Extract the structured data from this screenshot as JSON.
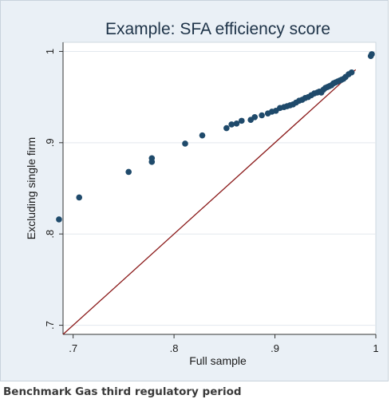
{
  "caption": "Benchmark Gas third regulatory period",
  "chart_data": {
    "type": "scatter",
    "title": "Example: SFA efficiency score",
    "xlabel": "Full sample",
    "ylabel": "Excluding single firm",
    "xlim": [
      0.69,
      1.0
    ],
    "ylim": [
      0.69,
      1.01
    ],
    "xticks": [
      0.7,
      0.8,
      0.9,
      1.0
    ],
    "xtick_labels": [
      ".7",
      ".8",
      ".9",
      "1"
    ],
    "yticks": [
      0.7,
      0.8,
      0.9,
      1.0
    ],
    "ytick_labels": [
      ".7",
      ".8",
      ".9",
      "1"
    ],
    "grid": true,
    "reference_line": {
      "from": [
        0.69,
        0.69
      ],
      "to": [
        0.98,
        0.98
      ],
      "color": "#8b1a1a"
    },
    "marker_color": "#1f4a6b",
    "points": [
      [
        0.686,
        0.816
      ],
      [
        0.706,
        0.84
      ],
      [
        0.755,
        0.868
      ],
      [
        0.778,
        0.883
      ],
      [
        0.778,
        0.879
      ],
      [
        0.811,
        0.899
      ],
      [
        0.828,
        0.908
      ],
      [
        0.852,
        0.916
      ],
      [
        0.857,
        0.92
      ],
      [
        0.862,
        0.921
      ],
      [
        0.867,
        0.924
      ],
      [
        0.876,
        0.925
      ],
      [
        0.88,
        0.928
      ],
      [
        0.887,
        0.93
      ],
      [
        0.893,
        0.932
      ],
      [
        0.897,
        0.934
      ],
      [
        0.901,
        0.935
      ],
      [
        0.905,
        0.938
      ],
      [
        0.909,
        0.939
      ],
      [
        0.912,
        0.94
      ],
      [
        0.915,
        0.941
      ],
      [
        0.918,
        0.942
      ],
      [
        0.921,
        0.944
      ],
      [
        0.924,
        0.946
      ],
      [
        0.927,
        0.947
      ],
      [
        0.93,
        0.949
      ],
      [
        0.933,
        0.95
      ],
      [
        0.936,
        0.952
      ],
      [
        0.939,
        0.954
      ],
      [
        0.942,
        0.955
      ],
      [
        0.944,
        0.956
      ],
      [
        0.946,
        0.955
      ],
      [
        0.948,
        0.958
      ],
      [
        0.95,
        0.96
      ],
      [
        0.952,
        0.961
      ],
      [
        0.954,
        0.962
      ],
      [
        0.956,
        0.963
      ],
      [
        0.958,
        0.965
      ],
      [
        0.96,
        0.966
      ],
      [
        0.962,
        0.967
      ],
      [
        0.964,
        0.968
      ],
      [
        0.966,
        0.969
      ],
      [
        0.968,
        0.97
      ],
      [
        0.97,
        0.972
      ],
      [
        0.973,
        0.975
      ],
      [
        0.976,
        0.977
      ],
      [
        0.995,
        0.995
      ],
      [
        0.996,
        0.997
      ]
    ]
  }
}
